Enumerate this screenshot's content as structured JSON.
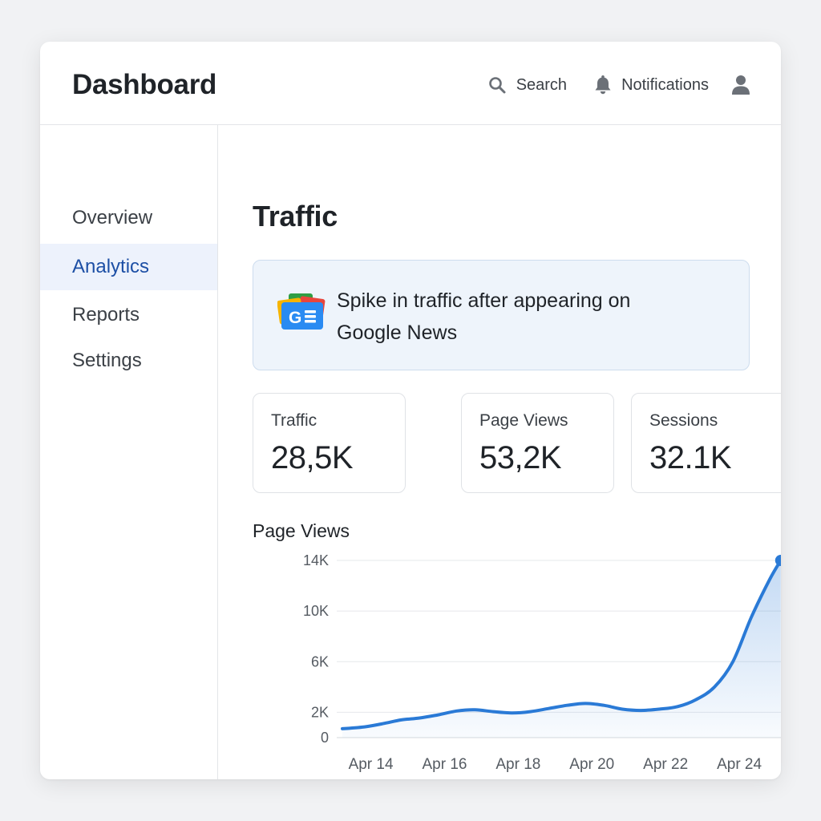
{
  "app": {
    "title": "Dashboard"
  },
  "header": {
    "search_label": "Search",
    "notifications_label": "Notifications"
  },
  "sidebar": {
    "items": [
      {
        "label": "Overview",
        "active": false
      },
      {
        "label": "Analytics",
        "active": true
      },
      {
        "label": "Reports",
        "active": false
      },
      {
        "label": "Settings",
        "active": false
      }
    ]
  },
  "main": {
    "title": "Traffic",
    "alert": {
      "text": "Spike in traffic after appearing on Google News",
      "icon": "google-news-icon"
    },
    "stats": [
      {
        "label": "Traffic",
        "value": "28,5K"
      },
      {
        "label": "Page Views",
        "value": "53,2K"
      },
      {
        "label": "Sessions",
        "value": "32.1K"
      }
    ],
    "chart_title": "Page Views"
  },
  "colors": {
    "accent": "#2a7ad6",
    "active_nav_bg": "#edf2fc",
    "active_nav_text": "#1d4fa5",
    "alert_bg": "#eef4fb"
  },
  "chart_data": {
    "type": "area",
    "title": "Page Views",
    "y_tick_labels": [
      "14K",
      "10K",
      "6K",
      "2K",
      "0"
    ],
    "y_tick_values": [
      14000,
      10000,
      6000,
      2000,
      0
    ],
    "x_tick_labels": [
      "Apr 14",
      "Apr 16",
      "Apr 18",
      "Apr 20",
      "Apr 22",
      "Apr 24"
    ],
    "x_tick_values": [
      14,
      16,
      18,
      20,
      22,
      24
    ],
    "xlim": [
      13.4,
      25.5
    ],
    "ylim": [
      0,
      14000
    ],
    "series": [
      {
        "name": "Page Views",
        "x": [
          13.4,
          14,
          14.5,
          15,
          15.5,
          16,
          16.5,
          17,
          17.5,
          18,
          18.5,
          19,
          19.5,
          20,
          20.5,
          21,
          21.5,
          22,
          22.5,
          23,
          23.5,
          24,
          24.5,
          25,
          25.3
        ],
        "y": [
          700,
          850,
          1100,
          1400,
          1550,
          1800,
          2100,
          2200,
          2050,
          1950,
          2050,
          2300,
          2550,
          2700,
          2550,
          2250,
          2150,
          2250,
          2450,
          3000,
          4000,
          6000,
          9500,
          12500,
          14000
        ]
      }
    ],
    "end_marker": true,
    "grid": true
  }
}
